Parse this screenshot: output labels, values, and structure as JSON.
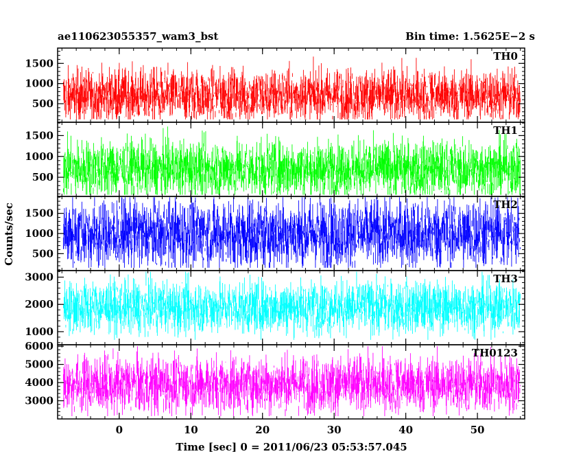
{
  "header": {
    "left_title": "ae110623055357_wam3_bst",
    "right_title": "Bin time: 1.5625E−2 s"
  },
  "axes": {
    "ylabel": "Counts/sec",
    "xlabel": "Time [sec] 0 = 2011/06/23 05:53:57.045"
  },
  "chart_data": {
    "type": "line",
    "x_range": [
      -8.6,
      56.6
    ],
    "x_data_range": [
      -7.8,
      56.0
    ],
    "x_ticks_major": [
      0,
      10,
      20,
      30,
      40,
      50
    ],
    "x_tick_labels": [
      "0",
      "10",
      "20",
      "30",
      "40",
      "50"
    ],
    "panels": [
      {
        "name": "TH0",
        "color": "#ff0000",
        "ylim": [
          40,
          1880
        ],
        "yticks": [
          500,
          1000,
          1500
        ],
        "ytick_labels": [
          "500",
          "1000",
          "1500"
        ],
        "y_minor_step": 100,
        "mean": 700,
        "spread": 330,
        "min": 110,
        "max": 1850
      },
      {
        "name": "TH1",
        "color": "#00ff00",
        "ylim": [
          40,
          1820
        ],
        "yticks": [
          500,
          1000,
          1500
        ],
        "ytick_labels": [
          "500",
          "1000",
          "1500"
        ],
        "y_minor_step": 100,
        "mean": 700,
        "spread": 340,
        "min": 80,
        "max": 1790
      },
      {
        "name": "TH2",
        "color": "#0000ff",
        "ylim": [
          80,
          1920
        ],
        "yticks": [
          500,
          1000,
          1500
        ],
        "ytick_labels": [
          "500",
          "1000",
          "1500"
        ],
        "y_minor_step": 100,
        "mean": 1000,
        "spread": 430,
        "min": 150,
        "max": 1900
      },
      {
        "name": "TH3",
        "color": "#00ffff",
        "ylim": [
          520,
          3240
        ],
        "yticks": [
          1000,
          2000,
          3000
        ],
        "ytick_labels": [
          "1000",
          "2000",
          "3000"
        ],
        "y_minor_step": 200,
        "mean": 1900,
        "spread": 480,
        "min": 700,
        "max": 3200
      },
      {
        "name": "TH0123",
        "color": "#ff00ff",
        "ylim": [
          2000,
          6080
        ],
        "yticks": [
          3000,
          4000,
          5000,
          6000
        ],
        "ytick_labels": [
          "3000",
          "4000",
          "5000",
          "6000"
        ],
        "y_minor_step": 200,
        "mean": 3900,
        "spread": 780,
        "min": 2150,
        "max": 6000
      }
    ]
  }
}
